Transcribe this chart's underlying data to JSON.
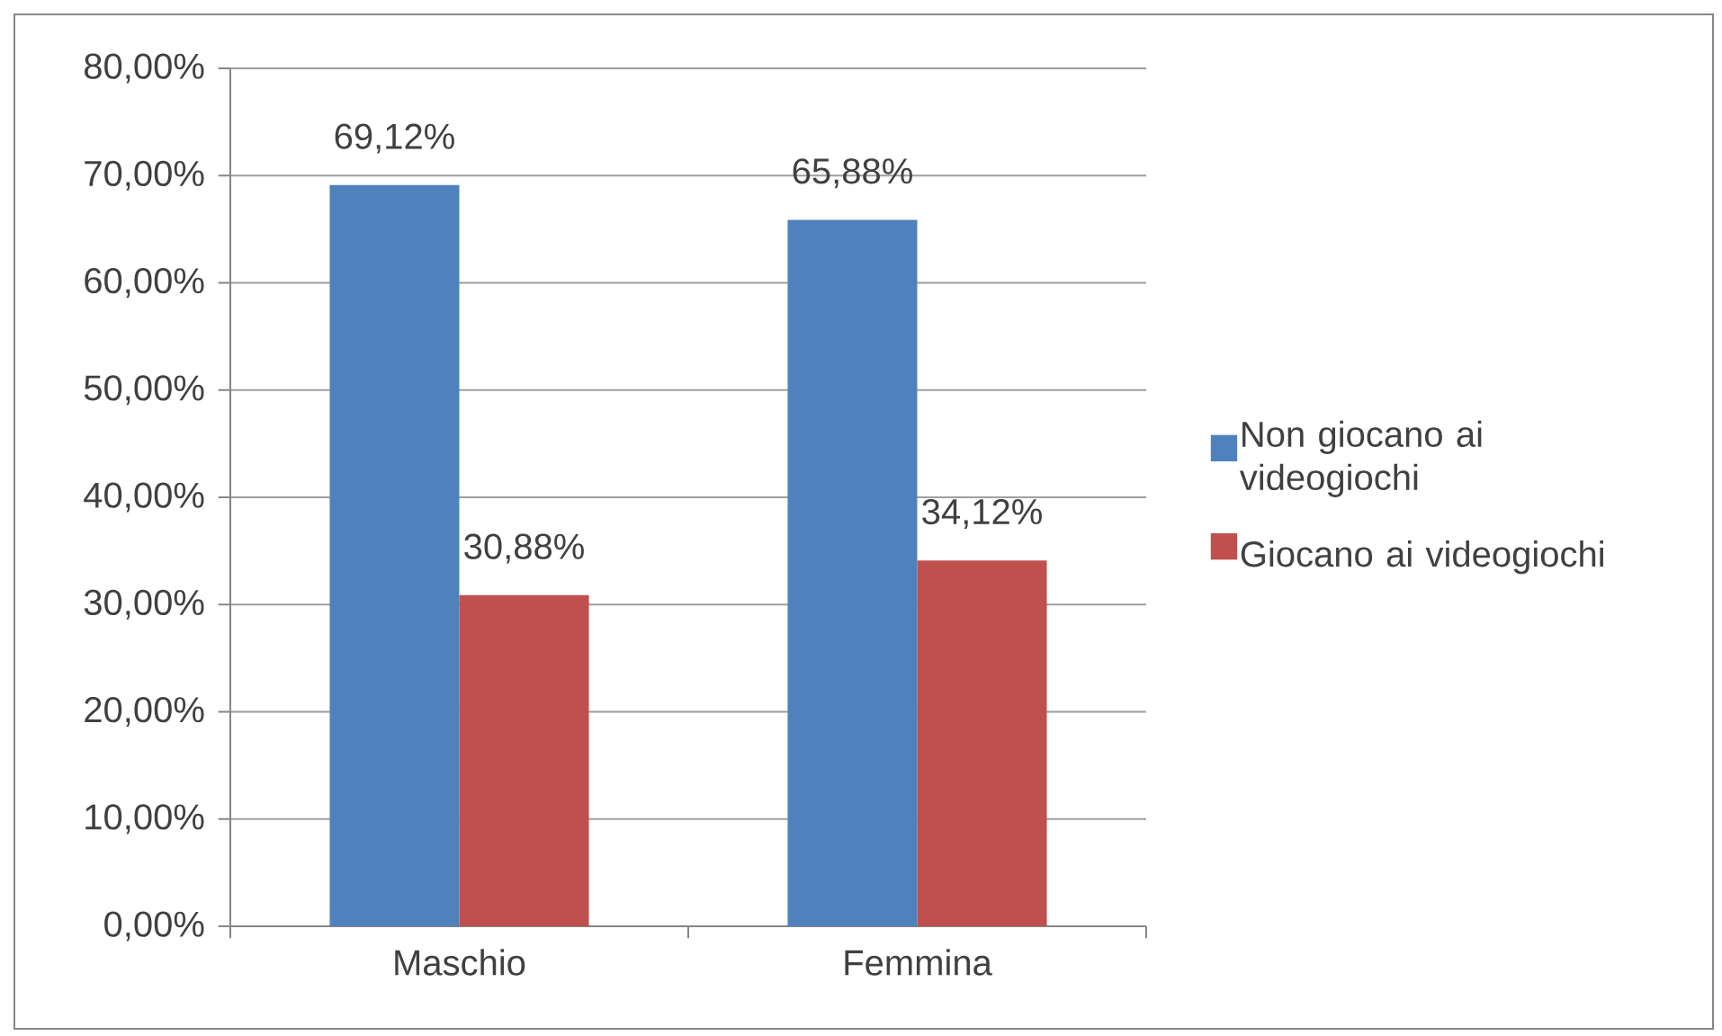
{
  "chart_data": {
    "type": "bar",
    "categories": [
      "Maschio",
      "Femmina"
    ],
    "series": [
      {
        "name": "Non giocano ai videogiochi",
        "color": "#4f81bd",
        "values": [
          69.12,
          65.88
        ],
        "value_labels": [
          "69,12%",
          "65,88%"
        ]
      },
      {
        "name": "Giocano ai videogiochi",
        "color": "#c0504d",
        "values": [
          30.88,
          34.12
        ],
        "value_labels": [
          "30,88%",
          "34,12%"
        ]
      }
    ],
    "ylim": [
      0,
      80
    ],
    "yticks": [
      {
        "value": 0,
        "label": "0,00%"
      },
      {
        "value": 10,
        "label": "10,00%"
      },
      {
        "value": 20,
        "label": "20,00%"
      },
      {
        "value": 30,
        "label": "30,00%"
      },
      {
        "value": 40,
        "label": "40,00%"
      },
      {
        "value": 50,
        "label": "50,00%"
      },
      {
        "value": 60,
        "label": "60,00%"
      },
      {
        "value": 70,
        "label": "70,00%"
      },
      {
        "value": 80,
        "label": "80,00%"
      }
    ],
    "grid": "y",
    "legend": "right"
  }
}
